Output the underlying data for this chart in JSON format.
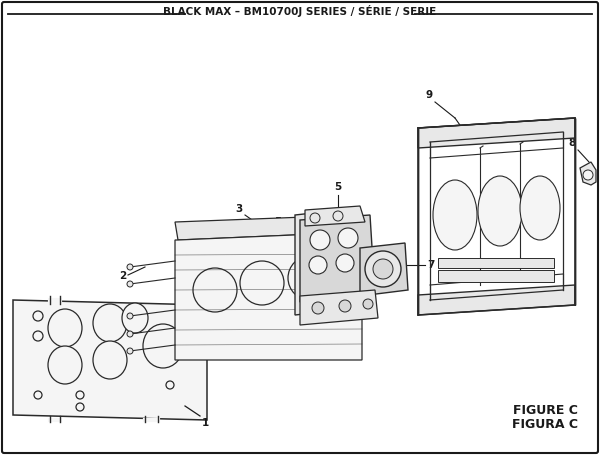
{
  "title": "BLACK MAX – BM10700J SERIES / SÉRIE / SERIE",
  "figure_label": "FIGURE C",
  "figura_label": "FIGURA C",
  "bg_color": "#ffffff",
  "border_color": "#1a1a1a",
  "line_color": "#2a2a2a",
  "fill_light": "#f5f5f5",
  "fill_mid": "#e8e8e8",
  "fill_dark": "#d8d8d8"
}
